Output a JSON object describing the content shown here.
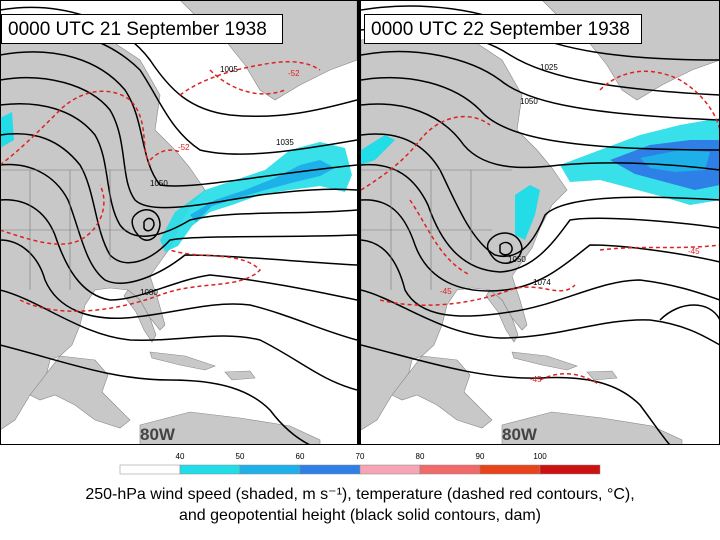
{
  "panels": [
    {
      "title": "0000 UTC 21 September 1938",
      "longitude_label": "80W",
      "height_labels": [
        {
          "text": "1005"
        },
        {
          "text": "1035"
        },
        {
          "text": "1050"
        },
        {
          "text": "1080"
        }
      ],
      "temperature_labels": [
        {
          "text": "-52"
        },
        {
          "text": "-52"
        }
      ]
    },
    {
      "title": "0000 UTC 22 September 1938",
      "longitude_label": "80W",
      "height_labels": [
        {
          "text": "1025"
        },
        {
          "text": "1050"
        },
        {
          "text": "1050"
        },
        {
          "text": "1074"
        }
      ],
      "temperature_labels": [
        {
          "text": "-45"
        },
        {
          "text": "-45"
        },
        {
          "text": "-45"
        }
      ]
    }
  ],
  "colorbar": {
    "tick_labels": [
      "40",
      "50",
      "60",
      "70",
      "80",
      "90",
      "100"
    ],
    "colors": [
      "#ffffff",
      "#22dde8",
      "#1eb0e8",
      "#2e7fe6",
      "#f5a5b5",
      "#f06a6a",
      "#e8441c",
      "#cc1111"
    ]
  },
  "caption": {
    "line1": "250-hPa wind speed (shaded, m s⁻¹), temperature (dashed red contours, °C),",
    "line2": "and geopotential height (black solid contours, dam)"
  },
  "colors": {
    "land": "#c8c8c8",
    "ocean": "#ffffff",
    "height_contour": "#000000",
    "temperature_contour": "#dd2222"
  }
}
